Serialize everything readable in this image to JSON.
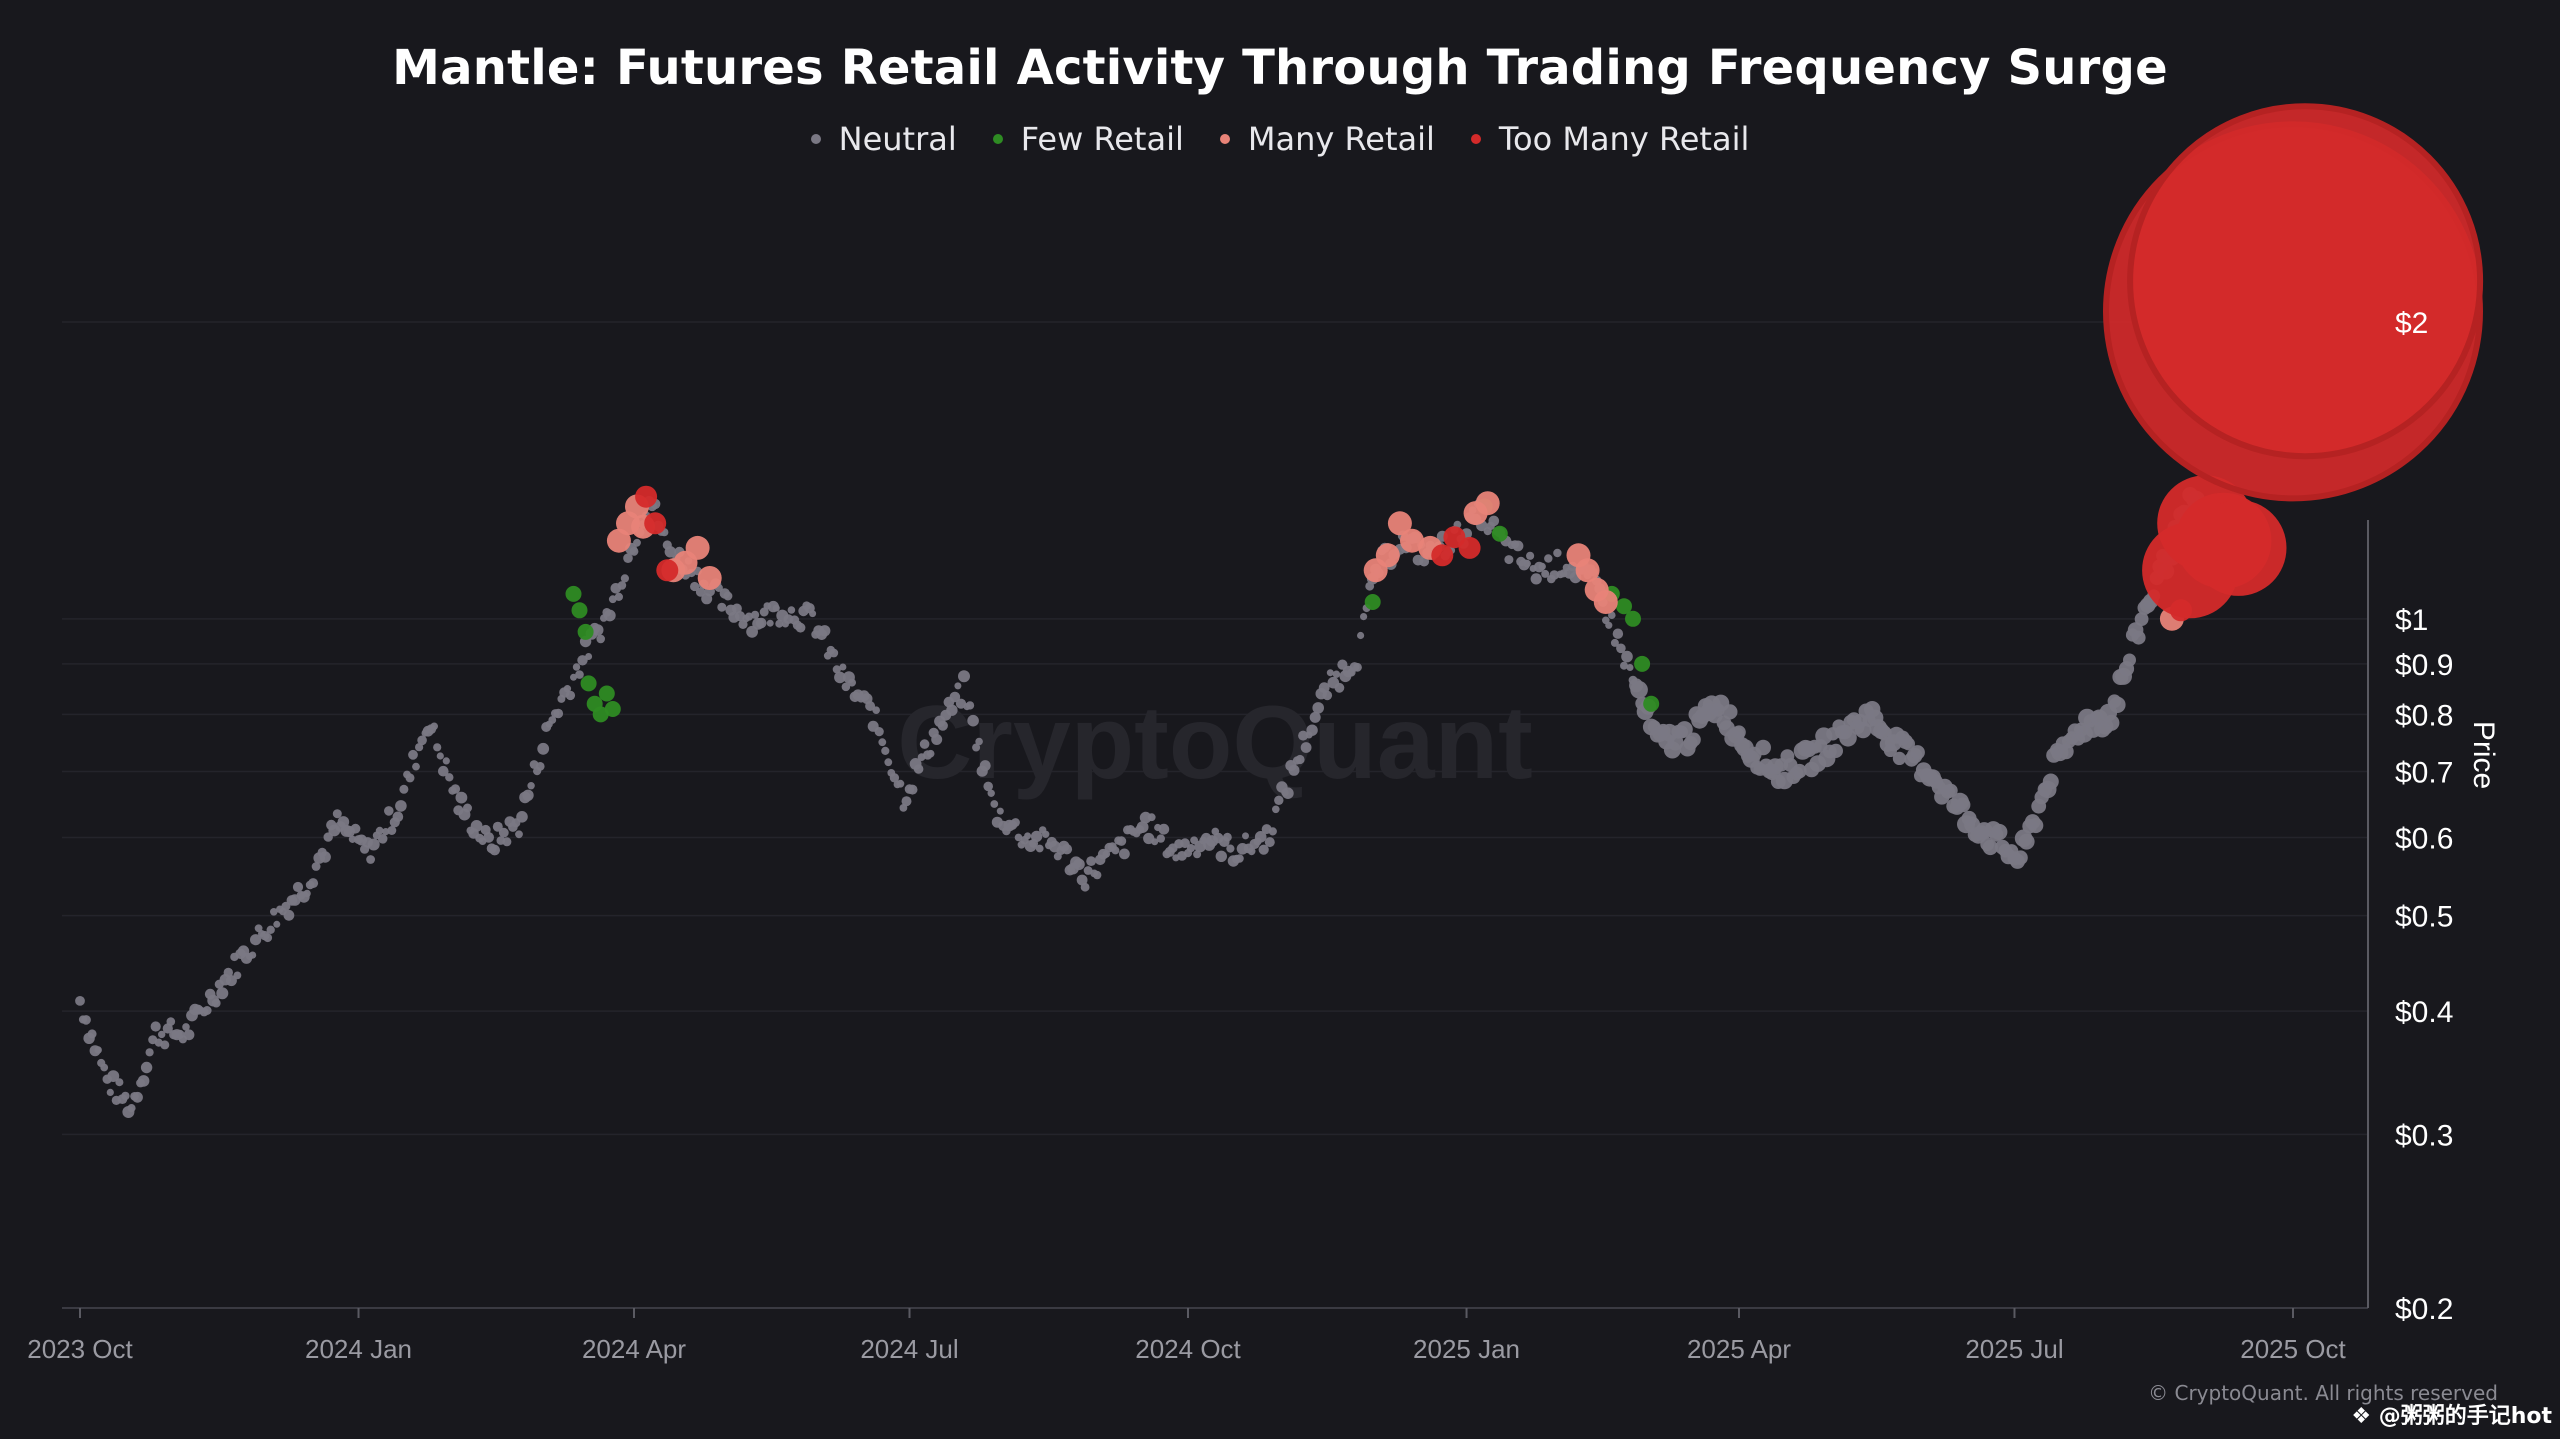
{
  "chart_data": {
    "type": "scatter",
    "title": "Mantle: Futures Retail Activity Through Trading Frequency Surge",
    "ylabel": "Price",
    "xlabel": "",
    "yscale": "log",
    "ylim": [
      0.2,
      2.6
    ],
    "xlim": [
      "2023-09-20",
      "2025-11-15"
    ],
    "watermark": "CryptoQuant",
    "legend": [
      {
        "key": "neutral",
        "label": "Neutral",
        "color": "#7a7884"
      },
      {
        "key": "few",
        "label": "Few Retail",
        "color": "#2e8b23"
      },
      {
        "key": "many",
        "label": "Many Retail",
        "color": "#e88378"
      },
      {
        "key": "too_many",
        "label": "Too Many Retail",
        "color": "#d42a2a"
      }
    ],
    "x_ticks": [
      {
        "date": "2023-10-01",
        "label": "2023 Oct"
      },
      {
        "date": "2024-01-01",
        "label": "2024 Jan"
      },
      {
        "date": "2024-04-01",
        "label": "2024 Apr"
      },
      {
        "date": "2024-07-01",
        "label": "2024 Jul"
      },
      {
        "date": "2024-10-01",
        "label": "2024 Oct"
      },
      {
        "date": "2025-01-01",
        "label": "2025 Jan"
      },
      {
        "date": "2025-04-01",
        "label": "2025 Apr"
      },
      {
        "date": "2025-07-01",
        "label": "2025 Jul"
      },
      {
        "date": "2025-10-01",
        "label": "2025 Oct"
      }
    ],
    "y_ticks": [
      {
        "value": 0.2,
        "label": "$0.2"
      },
      {
        "value": 0.3,
        "label": "$0.3"
      },
      {
        "value": 0.4,
        "label": "$0.4"
      },
      {
        "value": 0.5,
        "label": "$0.5"
      },
      {
        "value": 0.6,
        "label": "$0.6"
      },
      {
        "value": 0.7,
        "label": "$0.7"
      },
      {
        "value": 0.8,
        "label": "$0.8"
      },
      {
        "value": 0.9,
        "label": "$0.9"
      },
      {
        "value": 1,
        "label": "$1"
      },
      {
        "value": 2,
        "label": "$2"
      }
    ],
    "price_path": [
      [
        "2023-10-01",
        0.41
      ],
      [
        "2023-10-10",
        0.34
      ],
      [
        "2023-10-18",
        0.32
      ],
      [
        "2023-10-26",
        0.38
      ],
      [
        "2023-11-05",
        0.38
      ],
      [
        "2023-11-15",
        0.42
      ],
      [
        "2023-11-25",
        0.46
      ],
      [
        "2023-12-05",
        0.5
      ],
      [
        "2023-12-15",
        0.54
      ],
      [
        "2023-12-25",
        0.62
      ],
      [
        "2024-01-04",
        0.58
      ],
      [
        "2024-01-14",
        0.64
      ],
      [
        "2024-01-24",
        0.79
      ],
      [
        "2024-02-03",
        0.65
      ],
      [
        "2024-02-13",
        0.59
      ],
      [
        "2024-02-23",
        0.62
      ],
      [
        "2024-03-04",
        0.78
      ],
      [
        "2024-03-14",
        0.9
      ],
      [
        "2024-03-24",
        1.02
      ],
      [
        "2024-04-01",
        1.2
      ],
      [
        "2024-04-06",
        1.33
      ],
      [
        "2024-04-12",
        1.18
      ],
      [
        "2024-04-20",
        1.12
      ],
      [
        "2024-04-30",
        1.04
      ],
      [
        "2024-05-10",
        1.0
      ],
      [
        "2024-05-20",
        1.02
      ],
      [
        "2024-05-30",
        1.0
      ],
      [
        "2024-06-09",
        0.87
      ],
      [
        "2024-06-19",
        0.8
      ],
      [
        "2024-06-29",
        0.66
      ],
      [
        "2024-07-09",
        0.76
      ],
      [
        "2024-07-19",
        0.85
      ],
      [
        "2024-07-29",
        0.64
      ],
      [
        "2024-08-08",
        0.6
      ],
      [
        "2024-08-18",
        0.59
      ],
      [
        "2024-08-28",
        0.55
      ],
      [
        "2024-09-07",
        0.58
      ],
      [
        "2024-09-17",
        0.62
      ],
      [
        "2024-09-27",
        0.58
      ],
      [
        "2024-10-07",
        0.6
      ],
      [
        "2024-10-17",
        0.58
      ],
      [
        "2024-10-27",
        0.6
      ],
      [
        "2024-11-06",
        0.72
      ],
      [
        "2024-11-16",
        0.85
      ],
      [
        "2024-11-26",
        0.92
      ],
      [
        "2024-12-02",
        1.12
      ],
      [
        "2024-12-10",
        1.2
      ],
      [
        "2024-12-20",
        1.16
      ],
      [
        "2024-12-30",
        1.22
      ],
      [
        "2025-01-06",
        1.28
      ],
      [
        "2025-01-14",
        1.18
      ],
      [
        "2025-01-24",
        1.12
      ],
      [
        "2025-02-03",
        1.14
      ],
      [
        "2025-02-13",
        1.08
      ],
      [
        "2025-02-23",
        0.9
      ],
      [
        "2025-03-05",
        0.75
      ],
      [
        "2025-03-15",
        0.76
      ],
      [
        "2025-03-25",
        0.82
      ],
      [
        "2025-04-04",
        0.74
      ],
      [
        "2025-04-14",
        0.7
      ],
      [
        "2025-04-24",
        0.72
      ],
      [
        "2025-05-04",
        0.76
      ],
      [
        "2025-05-14",
        0.8
      ],
      [
        "2025-05-24",
        0.74
      ],
      [
        "2025-06-03",
        0.7
      ],
      [
        "2025-06-13",
        0.64
      ],
      [
        "2025-06-23",
        0.6
      ],
      [
        "2025-07-03",
        0.57
      ],
      [
        "2025-07-13",
        0.7
      ],
      [
        "2025-07-23",
        0.78
      ],
      [
        "2025-08-02",
        0.8
      ],
      [
        "2025-08-12",
        1.0
      ],
      [
        "2025-08-20",
        1.15
      ],
      [
        "2025-08-28",
        1.3
      ],
      [
        "2025-09-05",
        1.25
      ],
      [
        "2025-09-12",
        1.2
      ]
    ],
    "few_retail_points": [
      [
        "2024-03-12",
        1.06
      ],
      [
        "2024-03-14",
        1.02
      ],
      [
        "2024-03-16",
        0.97
      ],
      [
        "2024-03-17",
        0.86
      ],
      [
        "2024-03-19",
        0.82
      ],
      [
        "2024-03-21",
        0.8
      ],
      [
        "2024-03-23",
        0.84
      ],
      [
        "2024-03-25",
        0.81
      ],
      [
        "2024-12-01",
        1.04
      ],
      [
        "2025-01-07",
        1.3
      ],
      [
        "2025-01-12",
        1.22
      ],
      [
        "2025-02-18",
        1.06
      ],
      [
        "2025-02-22",
        1.03
      ],
      [
        "2025-02-25",
        1.0
      ],
      [
        "2025-02-28",
        0.9
      ],
      [
        "2025-03-03",
        0.82
      ]
    ],
    "many_retail_points": [
      [
        "2024-03-27",
        1.2
      ],
      [
        "2024-03-30",
        1.25
      ],
      [
        "2024-04-02",
        1.3
      ],
      [
        "2024-04-04",
        1.24
      ],
      [
        "2024-04-14",
        1.12
      ],
      [
        "2024-04-18",
        1.14
      ],
      [
        "2024-04-22",
        1.18
      ],
      [
        "2024-04-26",
        1.1
      ],
      [
        "2024-12-02",
        1.12
      ],
      [
        "2024-12-06",
        1.16
      ],
      [
        "2024-12-10",
        1.25
      ],
      [
        "2024-12-14",
        1.2
      ],
      [
        "2024-12-20",
        1.18
      ],
      [
        "2025-01-04",
        1.28
      ],
      [
        "2025-01-08",
        1.31
      ],
      [
        "2025-02-07",
        1.16
      ],
      [
        "2025-02-10",
        1.12
      ],
      [
        "2025-02-13",
        1.07
      ],
      [
        "2025-02-16",
        1.04
      ],
      [
        "2025-08-22",
        1.0
      ]
    ],
    "too_many_retail_points": [
      [
        "2024-04-05",
        1.33
      ],
      [
        "2024-04-08",
        1.25
      ],
      [
        "2024-04-12",
        1.12
      ],
      [
        "2024-12-24",
        1.16
      ],
      [
        "2024-12-28",
        1.21
      ],
      [
        "2025-01-02",
        1.18
      ],
      [
        "2025-08-25",
        1.02
      ],
      [
        "2025-08-28",
        1.12
      ],
      [
        "2025-09-02",
        1.25
      ],
      [
        "2025-09-08",
        1.2
      ],
      [
        "2025-09-13",
        1.18
      ],
      [
        "2025-10-01",
        2.05
      ],
      [
        "2025-10-05",
        2.2
      ]
    ]
  },
  "footer": {
    "credit": "© CryptoQuant. All rights reserved",
    "watermark": "❖ @粥粥的手记hot"
  }
}
